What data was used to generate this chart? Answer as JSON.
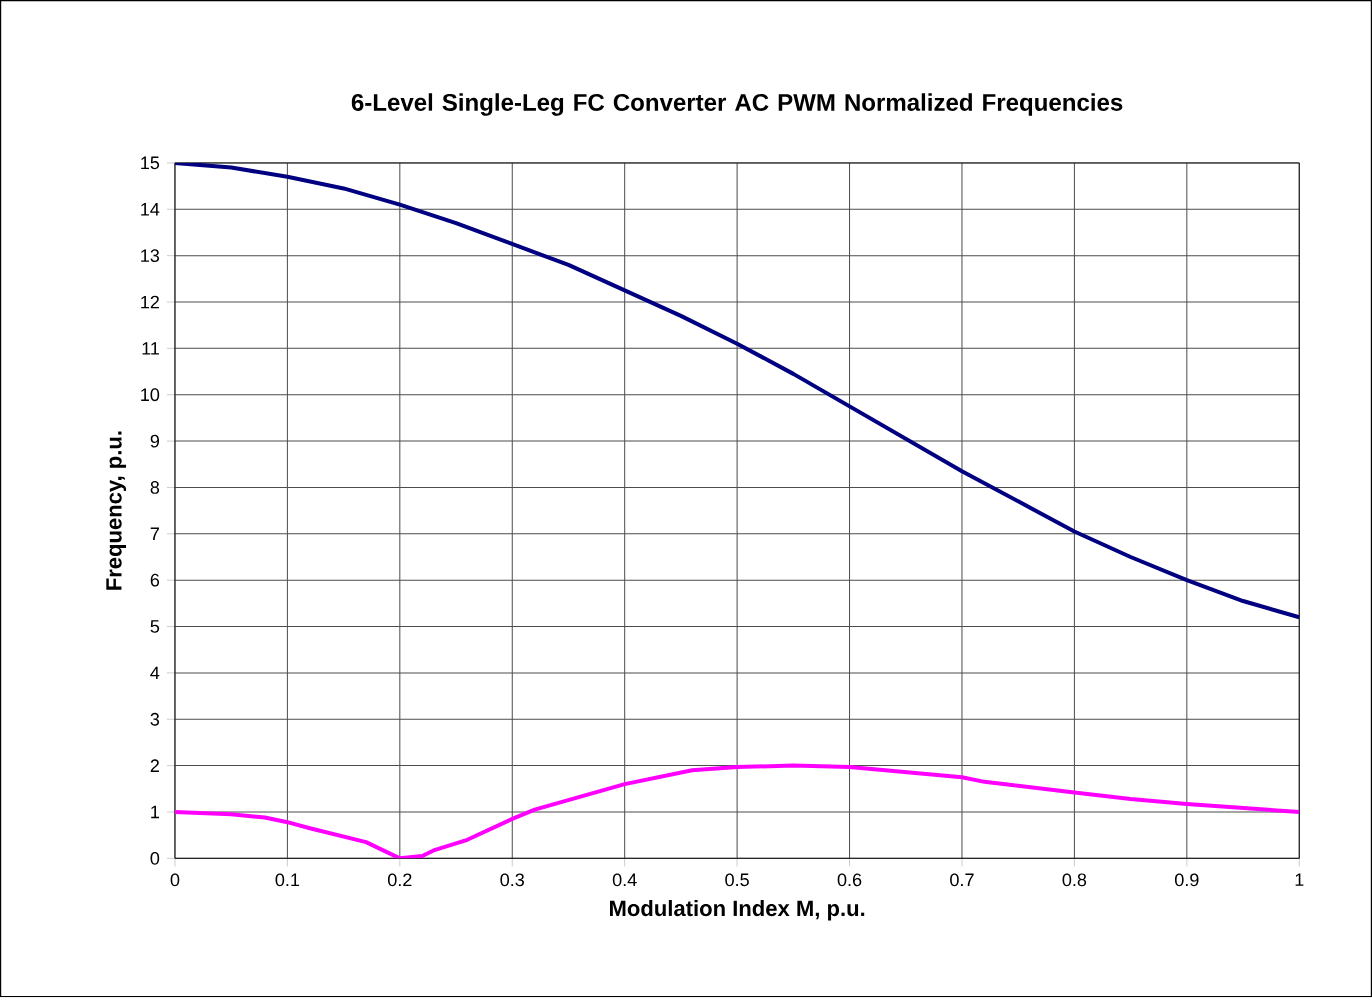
{
  "chart_data": {
    "type": "line",
    "title": "6-Level Single-Leg FC Converter AC PWM Normalized Frequencies",
    "xlabel": "Modulation Index M, p.u.",
    "ylabel": "Frequency, p.u.",
    "xlim": [
      0,
      1
    ],
    "ylim": [
      0,
      15
    ],
    "xticks": [
      0,
      0.1,
      0.2,
      0.3,
      0.4,
      0.5,
      0.6,
      0.7,
      0.8,
      0.9,
      1
    ],
    "yticks": [
      0,
      1,
      2,
      3,
      4,
      5,
      6,
      7,
      8,
      9,
      10,
      11,
      12,
      13,
      14,
      15
    ],
    "grid": true,
    "marker": "none",
    "line_style": "solid",
    "series": [
      {
        "color": "#000080",
        "x": [
          0,
          0.05,
          0.1,
          0.15,
          0.2,
          0.25,
          0.3,
          0.35,
          0.4,
          0.45,
          0.5,
          0.55,
          0.6,
          0.65,
          0.7,
          0.75,
          0.8,
          0.85,
          0.9,
          0.95,
          1
        ],
        "values": [
          15,
          14.9,
          14.7,
          14.45,
          14.1,
          13.7,
          13.25,
          12.8,
          12.25,
          11.7,
          11.1,
          10.45,
          9.75,
          9.05,
          8.35,
          7.7,
          7.05,
          6.5,
          6.0,
          5.55,
          5.2
        ]
      },
      {
        "color": "#ff00ff",
        "x": [
          0,
          0.05,
          0.08,
          0.1,
          0.12,
          0.17,
          0.2,
          0.22,
          0.23,
          0.26,
          0.3,
          0.32,
          0.4,
          0.46,
          0.5,
          0.55,
          0.6,
          0.7,
          0.72,
          0.8,
          0.85,
          0.9,
          1
        ],
        "values": [
          1,
          0.95,
          0.88,
          0.78,
          0.65,
          0.35,
          0,
          0.05,
          0.17,
          0.4,
          0.85,
          1.05,
          1.6,
          1.9,
          1.97,
          2.0,
          1.97,
          1.75,
          1.65,
          1.42,
          1.28,
          1.17,
          1.0
        ]
      }
    ]
  }
}
